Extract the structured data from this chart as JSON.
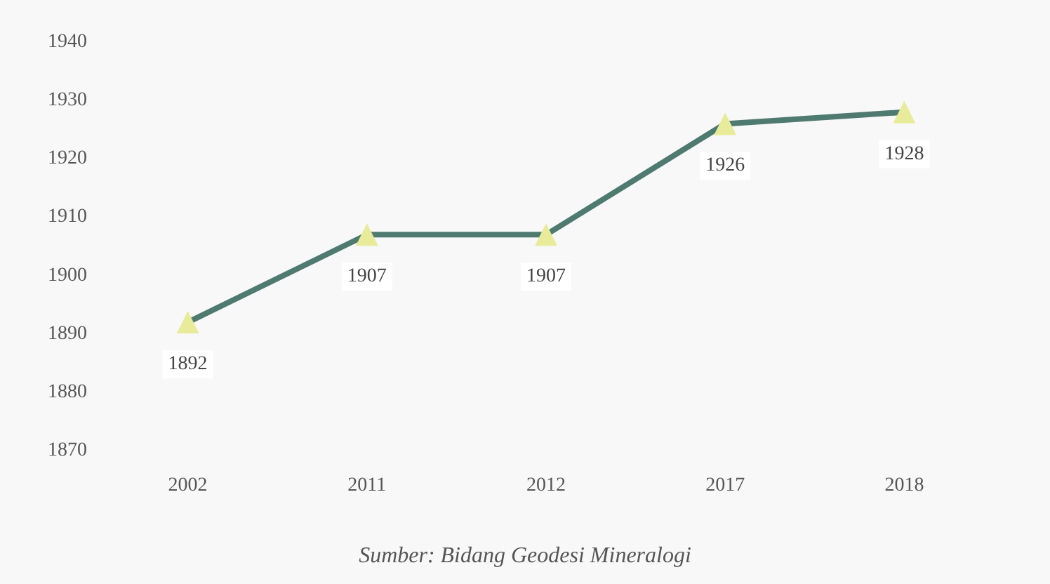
{
  "chart_data": {
    "type": "line",
    "categories": [
      "2002",
      "2011",
      "2012",
      "2017",
      "2018"
    ],
    "series": [
      {
        "color": "#4f7a70",
        "values": [
          1892,
          1907,
          1907,
          1926,
          1928
        ]
      }
    ],
    "ylim": [
      1870,
      1940
    ],
    "yticks": [
      1870,
      1880,
      1890,
      1900,
      1910,
      1920,
      1930,
      1940
    ],
    "data_labels": true,
    "marker": "triangle",
    "grid": false,
    "annotations": [
      "Sumber: Bidang Geodesi Mineralogi"
    ]
  }
}
